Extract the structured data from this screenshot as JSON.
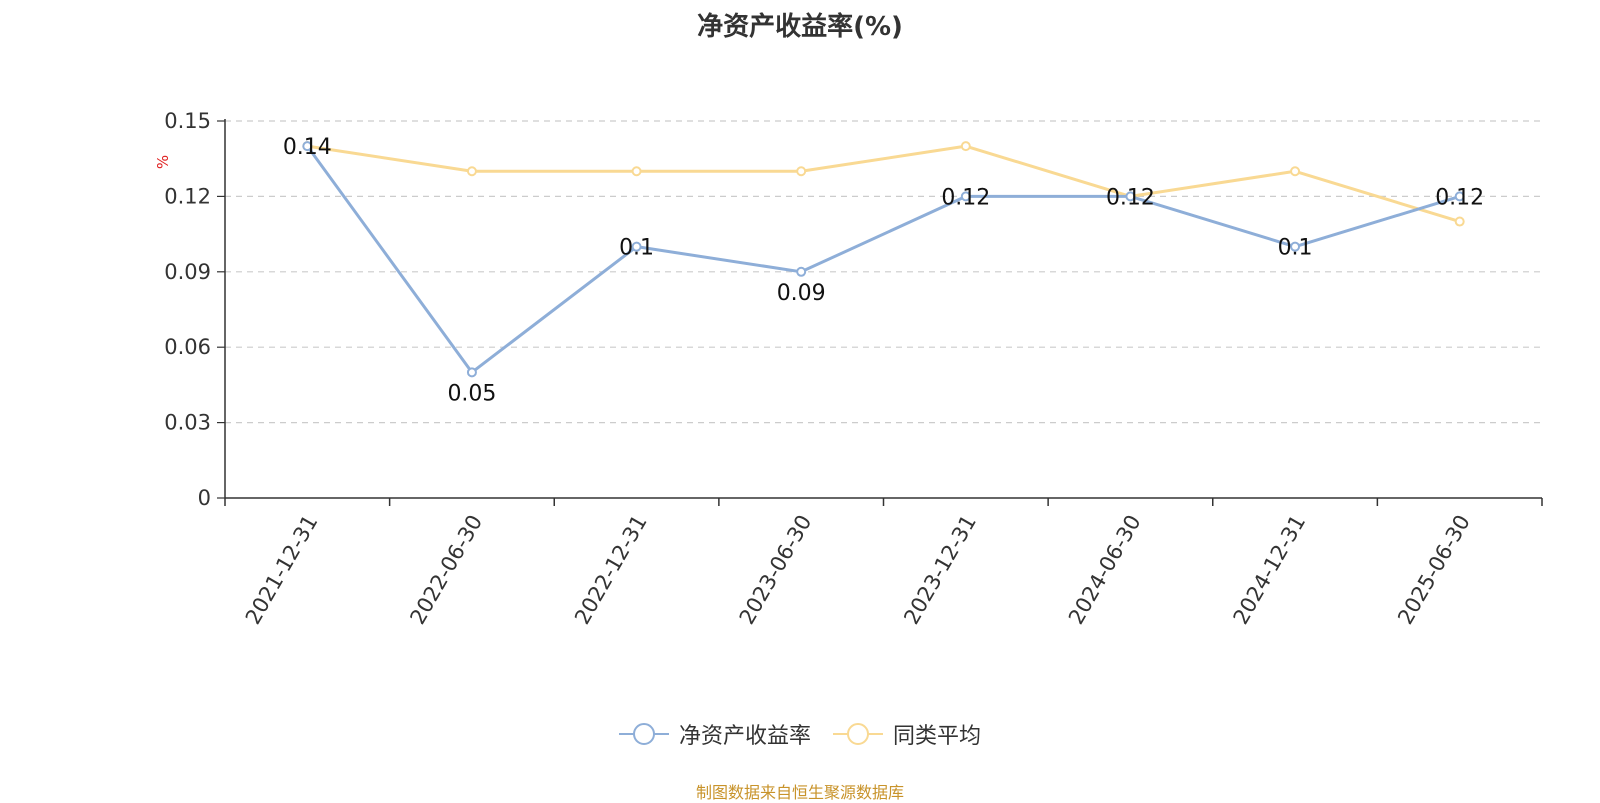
{
  "chart_data": {
    "type": "line",
    "title": "净资产收益率(%)",
    "ylabel": "%",
    "xlabel": "",
    "categories": [
      "2021-12-31",
      "2022-06-30",
      "2022-12-31",
      "2023-06-30",
      "2023-12-31",
      "2024-06-30",
      "2024-12-31",
      "2025-06-30"
    ],
    "ylim": [
      0,
      0.15
    ],
    "yticks": [
      "0",
      "0.03",
      "0.06",
      "0.09",
      "0.12",
      "0.15"
    ],
    "grid": true,
    "legend_position": "bottom",
    "series": [
      {
        "name": "净资产收益率",
        "values": [
          0.14,
          0.05,
          0.1,
          0.09,
          0.12,
          0.12,
          0.1,
          0.12
        ],
        "labels": [
          "0.14",
          "0.05",
          "0.1",
          "0.09",
          "0.12",
          "0.12",
          "0.1",
          "0.12"
        ],
        "color": "#8eaed8"
      },
      {
        "name": "同类平均",
        "values": [
          0.14,
          0.13,
          0.13,
          0.13,
          0.14,
          0.12,
          0.13,
          0.11
        ],
        "color": "#f9d993"
      }
    ],
    "source": "制图数据来自恒生聚源数据库"
  },
  "colors": {
    "axis": "#333333",
    "grid": "#cccccc",
    "ylabel": "#e02020",
    "source": "#c8932a"
  }
}
